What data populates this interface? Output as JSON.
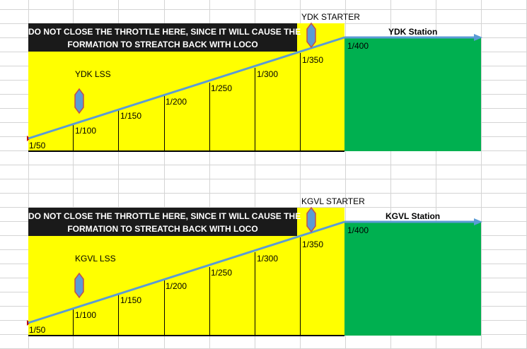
{
  "diagrams": [
    {
      "warning": {
        "line1": "DO NOT CLOSE THE THROTTLE HERE, SINCE IT WILL CAUSE THE",
        "line2": "FORMATION TO STREATCH BACK WITH LOCO"
      },
      "starter_label": "YDK STARTER",
      "station_label": "YDK Station",
      "lss_label": "YDK LSS",
      "gradients": [
        "1/50",
        "1/100",
        "1/150",
        "1/200",
        "1/250",
        "1/300",
        "1/350",
        "1/400"
      ]
    },
    {
      "warning": {
        "line1": "DO NOT CLOSE THE THROTTLE HERE, SINCE IT WILL CAUSE THE",
        "line2": "FORMATION TO STREATCH BACK WITH LOCO"
      },
      "starter_label": "KGVL STARTER",
      "station_label": "KGVL Station",
      "lss_label": "KGVL LSS",
      "gradients": [
        "1/50",
        "1/100",
        "1/150",
        "1/200",
        "1/250",
        "1/300",
        "1/350",
        "1/400"
      ]
    }
  ],
  "colors": {
    "yellow_zone": "#ffff00",
    "station_green": "#00b050",
    "arrow_blue": "#5b9bd5",
    "signal_fill": "#5b9bd5",
    "signal_stroke": "#c0504d",
    "warning_bg": "#1a1a1a",
    "grid": "#d4d4d4"
  }
}
